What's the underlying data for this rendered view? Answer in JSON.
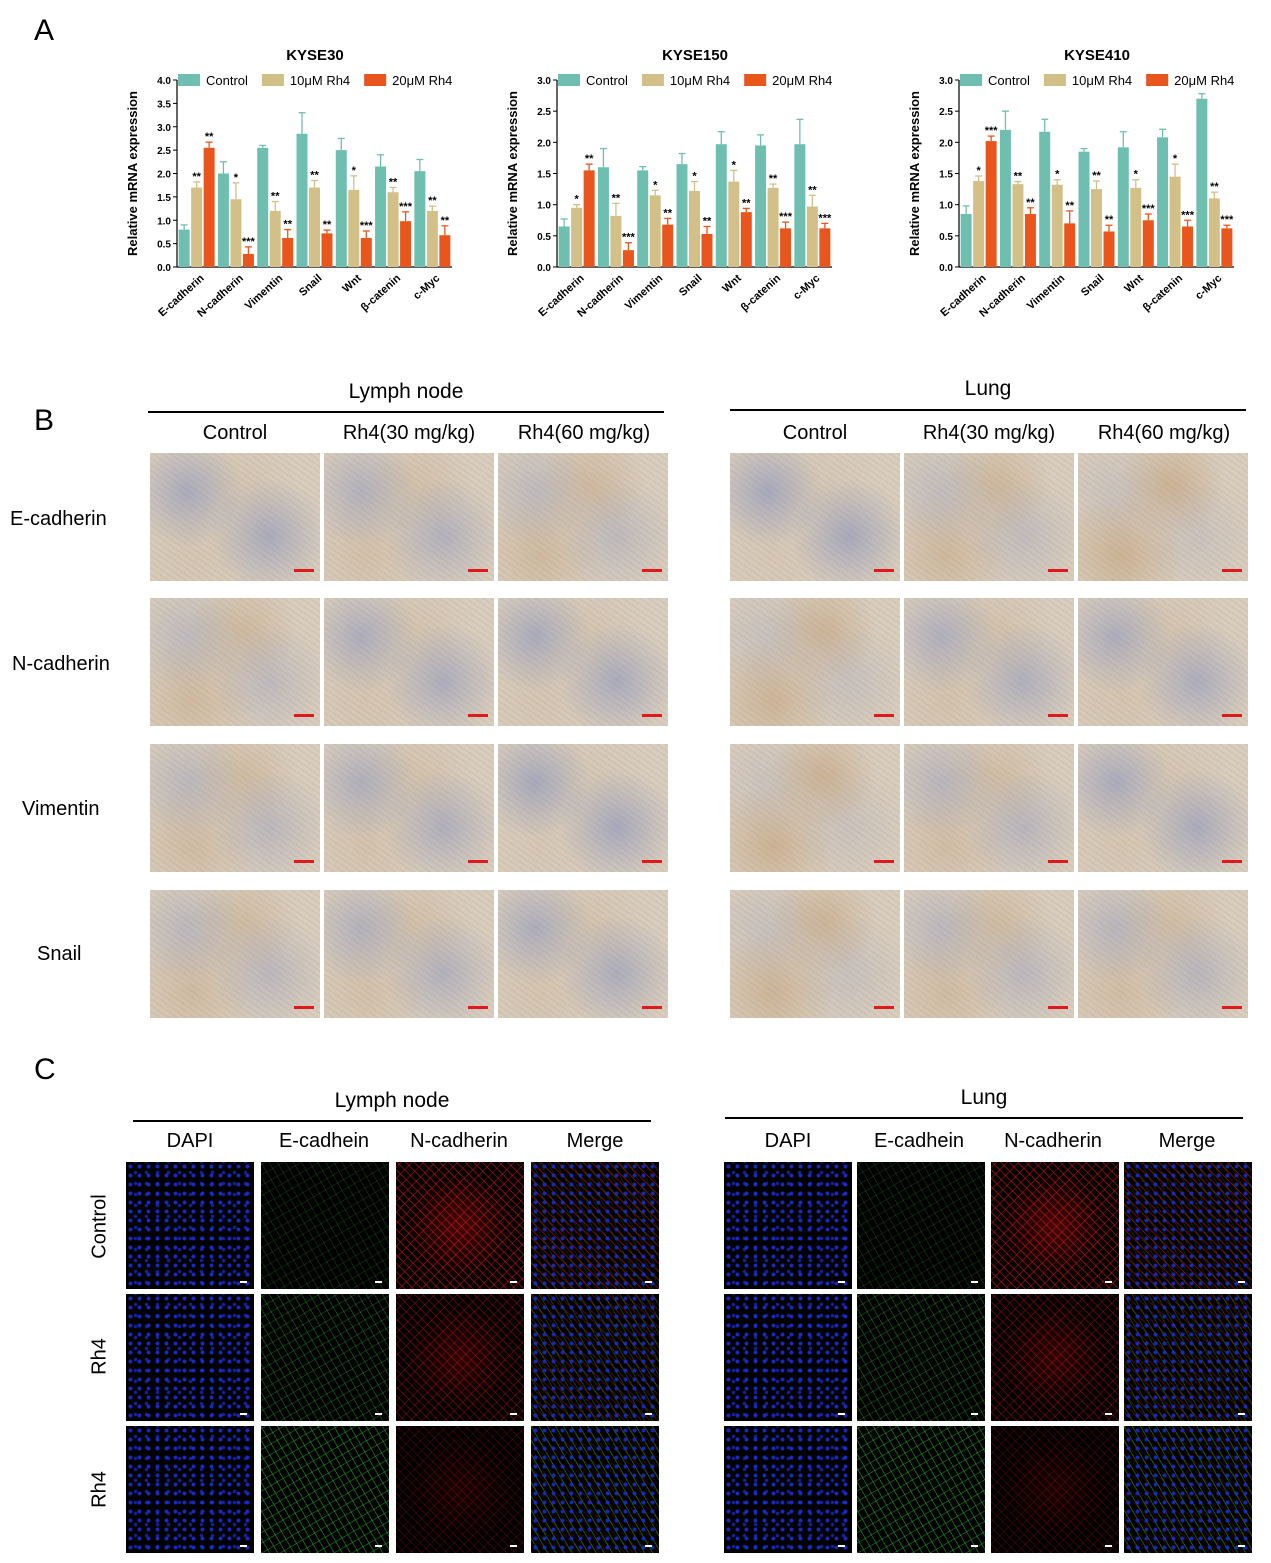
{
  "panels": {
    "a": "A",
    "b": "B",
    "c": "C"
  },
  "colors": {
    "control": "#6fbfb0",
    "rh4_10": "#d3c088",
    "rh4_20": "#e8561d",
    "error": "#777777",
    "ihc_blue": "#6f80b8",
    "ihc_brown": "#b98e5b",
    "ihc_base": "#d9cdbd",
    "dapi": "#1a2fd8",
    "ecad": "#2ecc32",
    "ncad": "#e01717"
  },
  "chart_data": [
    {
      "type": "bar",
      "title": "KYSE30",
      "ylabel": "Relative mRNA expression",
      "ylim": [
        0,
        4.0
      ],
      "yticks": [
        "0.0",
        "0.5",
        "1.0",
        "1.5",
        "2.0",
        "2.5",
        "3.0",
        "3.5",
        "4.0"
      ],
      "legend_position": "top",
      "categories": [
        "E-cadherin",
        "N-cadherin",
        "Vimentin",
        "Snail",
        "Wnt",
        "β-catenin",
        "c-Myc"
      ],
      "series": [
        {
          "name": "Control",
          "values": [
            0.8,
            2.0,
            2.55,
            2.85,
            2.5,
            2.15,
            2.05
          ],
          "errors": [
            0.1,
            0.25,
            0.05,
            0.45,
            0.25,
            0.25,
            0.25
          ],
          "sig": [
            "",
            "",
            "",
            "",
            "",
            "",
            ""
          ]
        },
        {
          "name": "10μM Rh4",
          "values": [
            1.7,
            1.45,
            1.2,
            1.7,
            1.65,
            1.6,
            1.2
          ],
          "errors": [
            0.12,
            0.35,
            0.2,
            0.15,
            0.3,
            0.1,
            0.1
          ],
          "sig": [
            "**",
            "*",
            "**",
            "**",
            "*",
            "**",
            "**"
          ]
        },
        {
          "name": "20μM Rh4",
          "values": [
            2.55,
            0.28,
            0.62,
            0.72,
            0.62,
            0.98,
            0.68
          ],
          "errors": [
            0.12,
            0.15,
            0.18,
            0.07,
            0.15,
            0.2,
            0.2
          ],
          "sig": [
            "**",
            "***",
            "**",
            "**",
            "***",
            "***",
            "**"
          ]
        }
      ]
    },
    {
      "type": "bar",
      "title": "KYSE150",
      "ylabel": "Relative mRNA expression",
      "ylim": [
        0,
        3.0
      ],
      "yticks": [
        "0.0",
        "0.5",
        "1.0",
        "1.5",
        "2.0",
        "2.5",
        "3.0"
      ],
      "legend_position": "top",
      "categories": [
        "E-cadherin",
        "N-cadherin",
        "Vimentin",
        "Snail",
        "Wnt",
        "β-catenin",
        "c-Myc"
      ],
      "series": [
        {
          "name": "Control",
          "values": [
            0.65,
            1.6,
            1.55,
            1.65,
            1.97,
            1.95,
            1.97
          ],
          "errors": [
            0.12,
            0.3,
            0.06,
            0.17,
            0.2,
            0.17,
            0.4
          ],
          "sig": [
            "",
            "",
            "",
            "",
            "",
            "",
            ""
          ]
        },
        {
          "name": "10μM Rh4",
          "values": [
            0.95,
            0.82,
            1.15,
            1.22,
            1.37,
            1.27,
            0.97
          ],
          "errors": [
            0.05,
            0.2,
            0.08,
            0.15,
            0.18,
            0.06,
            0.18
          ],
          "sig": [
            "*",
            "**",
            "*",
            "*",
            "*",
            "**",
            "**"
          ]
        },
        {
          "name": "20μM Rh4",
          "values": [
            1.55,
            0.27,
            0.68,
            0.53,
            0.88,
            0.62,
            0.62
          ],
          "errors": [
            0.1,
            0.12,
            0.1,
            0.12,
            0.06,
            0.1,
            0.08
          ],
          "sig": [
            "**",
            "***",
            "**",
            "**",
            "**",
            "***",
            "***"
          ]
        }
      ]
    },
    {
      "type": "bar",
      "title": "KYSE410",
      "ylabel": "Relative mRNA expression",
      "ylim": [
        0,
        3.0
      ],
      "yticks": [
        "0.0",
        "0.5",
        "1.0",
        "1.5",
        "2.0",
        "2.5",
        "3.0"
      ],
      "legend_position": "top",
      "categories": [
        "E-cadherin",
        "N-cadherin",
        "Vimentin",
        "Snail",
        "Wnt",
        "β-catenin",
        "c-Myc"
      ],
      "series": [
        {
          "name": "Control",
          "values": [
            0.85,
            2.2,
            2.17,
            1.85,
            1.92,
            2.08,
            2.7
          ],
          "errors": [
            0.13,
            0.3,
            0.2,
            0.05,
            0.25,
            0.13,
            0.08
          ],
          "sig": [
            "",
            "",
            "",
            "",
            "",
            "",
            ""
          ]
        },
        {
          "name": "10μM Rh4",
          "values": [
            1.38,
            1.33,
            1.32,
            1.25,
            1.27,
            1.45,
            1.1
          ],
          "errors": [
            0.08,
            0.04,
            0.08,
            0.13,
            0.13,
            0.2,
            0.1
          ],
          "sig": [
            "*",
            "**",
            "*",
            "**",
            "*",
            "*",
            "**"
          ]
        },
        {
          "name": "20μM Rh4",
          "values": [
            2.02,
            0.85,
            0.7,
            0.57,
            0.75,
            0.65,
            0.62
          ],
          "errors": [
            0.08,
            0.1,
            0.2,
            0.1,
            0.1,
            0.1,
            0.05
          ],
          "sig": [
            "***",
            "**",
            "**",
            "**",
            "***",
            "***",
            "***"
          ]
        }
      ]
    }
  ],
  "panel_b": {
    "regions": [
      {
        "title": "Lymph node",
        "columns": [
          "Control",
          "Rh4(30 mg/kg)",
          "Rh4(60 mg/kg)"
        ]
      },
      {
        "title": "Lung",
        "columns": [
          "Control",
          "Rh4(30 mg/kg)",
          "Rh4(60 mg/kg)"
        ]
      }
    ],
    "rows": [
      "E-cadherin",
      "N-cadherin",
      "Vimentin",
      "Snail"
    ]
  },
  "panel_c": {
    "regions": [
      {
        "title": "Lymph node",
        "columns": [
          "DAPI",
          "E-cadhein",
          "N-cadherin",
          "Merge"
        ]
      },
      {
        "title": "Lung",
        "columns": [
          "DAPI",
          "E-cadhein",
          "N-cadherin",
          "Merge"
        ]
      }
    ],
    "rows": [
      "Control",
      "Rh4",
      "Rh4"
    ]
  }
}
